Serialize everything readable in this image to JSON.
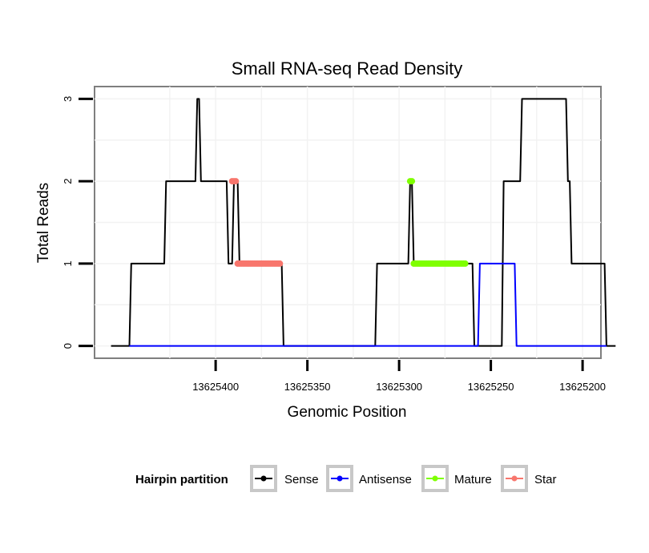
{
  "chart_data": {
    "type": "line",
    "title": "Small RNA-seq Read Density",
    "xlabel": "Genomic Position",
    "ylabel": "Total Reads",
    "x_reversed": true,
    "xlim": [
      13625466,
      13625190
    ],
    "ylim": [
      -0.15,
      3.15
    ],
    "x_ticks": [
      13625400,
      13625350,
      13625300,
      13625250,
      13625200
    ],
    "x_tick_labels": [
      "13625400",
      "13625350",
      "13625300",
      "13625250",
      "13625200"
    ],
    "y_ticks": [
      0,
      1,
      2,
      3
    ],
    "y_tick_labels": [
      "0",
      "1",
      "2",
      "3"
    ],
    "grid": true,
    "legend": {
      "title": "Hairpin partition",
      "position": "bottom",
      "entries": [
        "Sense",
        "Antisense",
        "Mature",
        "Star"
      ]
    },
    "series": [
      {
        "name": "Sense",
        "color": "#000000",
        "kind": "line",
        "x": [
          13625457,
          13625447,
          13625446,
          13625428,
          13625427,
          13625411,
          13625410,
          13625409,
          13625408,
          13625394,
          13625393,
          13625391,
          13625390,
          13625388,
          13625387,
          13625364,
          13625363,
          13625313,
          13625312,
          13625295,
          13625294,
          13625293,
          13625292,
          13625260,
          13625259,
          13625244,
          13625243,
          13625234,
          13625233,
          13625224,
          13625223,
          13625209,
          13625208,
          13625207,
          13625206,
          13625188,
          13625187,
          13625182
        ],
        "y": [
          0,
          0,
          1,
          1,
          2,
          2,
          3,
          3,
          2,
          2,
          1,
          1,
          2,
          2,
          1,
          1,
          0,
          0,
          1,
          1,
          2,
          2,
          1,
          1,
          0,
          0,
          2,
          2,
          3,
          3,
          3,
          3,
          2,
          2,
          1,
          1,
          0,
          0
        ]
      },
      {
        "name": "Antisense",
        "color": "#0000ff",
        "kind": "line",
        "x": [
          13625447,
          13625257,
          13625256,
          13625237,
          13625236,
          13625187
        ],
        "y": [
          0,
          0,
          1,
          1,
          0,
          0
        ]
      },
      {
        "name": "Mature",
        "color": "#7fff00",
        "kind": "points",
        "x": [
          13625294,
          13625293,
          13625292,
          13625291,
          13625290,
          13625289,
          13625288,
          13625287,
          13625286,
          13625285,
          13625284,
          13625283,
          13625282,
          13625281,
          13625280,
          13625279,
          13625278,
          13625277,
          13625276,
          13625275,
          13625274,
          13625273,
          13625272,
          13625271,
          13625270,
          13625269,
          13625268,
          13625267,
          13625266,
          13625265,
          13625264
        ],
        "y": [
          2,
          2,
          1,
          1,
          1,
          1,
          1,
          1,
          1,
          1,
          1,
          1,
          1,
          1,
          1,
          1,
          1,
          1,
          1,
          1,
          1,
          1,
          1,
          1,
          1,
          1,
          1,
          1,
          1,
          1,
          1
        ]
      },
      {
        "name": "Star",
        "color": "#f8766d",
        "kind": "points",
        "x": [
          13625391,
          13625390,
          13625389,
          13625388,
          13625387,
          13625386,
          13625385,
          13625384,
          13625383,
          13625382,
          13625381,
          13625380,
          13625379,
          13625378,
          13625377,
          13625376,
          13625375,
          13625374,
          13625373,
          13625372,
          13625371,
          13625370,
          13625369,
          13625368,
          13625367,
          13625366,
          13625365
        ],
        "y": [
          2,
          2,
          2,
          1,
          1,
          1,
          1,
          1,
          1,
          1,
          1,
          1,
          1,
          1,
          1,
          1,
          1,
          1,
          1,
          1,
          1,
          1,
          1,
          1,
          1,
          1,
          1
        ]
      }
    ]
  }
}
